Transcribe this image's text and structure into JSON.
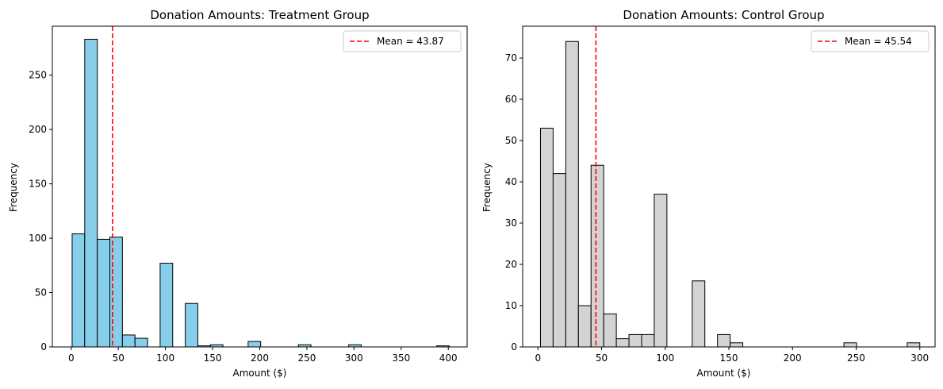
{
  "chart_data": [
    {
      "type": "bar",
      "subtype": "histogram",
      "title": "Donation Amounts: Treatment Group",
      "xlabel": "Amount ($)",
      "ylabel": "Frequency",
      "xlim": [
        -20,
        420
      ],
      "ylim": [
        0,
        295
      ],
      "xticks": [
        0,
        50,
        100,
        150,
        200,
        250,
        300,
        350,
        400
      ],
      "yticks": [
        0,
        50,
        100,
        150,
        200,
        250
      ],
      "bar_color": "#87ceeb",
      "edge_color": "#000000",
      "bin_width": 13.33,
      "bins": [
        {
          "x0": 1.0,
          "count": 104
        },
        {
          "x0": 14.33,
          "count": 283
        },
        {
          "x0": 27.67,
          "count": 99
        },
        {
          "x0": 41.0,
          "count": 101
        },
        {
          "x0": 54.33,
          "count": 11
        },
        {
          "x0": 67.67,
          "count": 8
        },
        {
          "x0": 94.33,
          "count": 77
        },
        {
          "x0": 121.0,
          "count": 40
        },
        {
          "x0": 134.33,
          "count": 1
        },
        {
          "x0": 147.67,
          "count": 2
        },
        {
          "x0": 187.67,
          "count": 5
        },
        {
          "x0": 241.0,
          "count": 2
        },
        {
          "x0": 294.33,
          "count": 2
        },
        {
          "x0": 387.67,
          "count": 1
        }
      ],
      "mean": 43.87,
      "mean_color": "#ff0000",
      "legend": {
        "label": "Mean = 43.87",
        "position": "upper right"
      }
    },
    {
      "type": "bar",
      "subtype": "histogram",
      "title": "Donation Amounts: Control Group",
      "xlabel": "Amount ($)",
      "ylabel": "Frequency",
      "xlim": [
        -12,
        312
      ],
      "ylim": [
        0,
        77.7
      ],
      "xticks": [
        0,
        50,
        100,
        150,
        200,
        250,
        300
      ],
      "yticks": [
        0,
        10,
        20,
        30,
        40,
        50,
        60,
        70
      ],
      "bar_color": "#d3d3d3",
      "edge_color": "#000000",
      "bin_width": 9.93,
      "bins": [
        {
          "x0": 2.0,
          "count": 53
        },
        {
          "x0": 11.93,
          "count": 42
        },
        {
          "x0": 21.87,
          "count": 74
        },
        {
          "x0": 31.8,
          "count": 10
        },
        {
          "x0": 41.73,
          "count": 44
        },
        {
          "x0": 51.67,
          "count": 8
        },
        {
          "x0": 61.6,
          "count": 2
        },
        {
          "x0": 71.53,
          "count": 3
        },
        {
          "x0": 81.47,
          "count": 3
        },
        {
          "x0": 91.4,
          "count": 37
        },
        {
          "x0": 121.2,
          "count": 16
        },
        {
          "x0": 141.07,
          "count": 3
        },
        {
          "x0": 151.0,
          "count": 1
        },
        {
          "x0": 240.4,
          "count": 1
        },
        {
          "x0": 290.07,
          "count": 1
        }
      ],
      "mean": 45.54,
      "mean_color": "#ff0000",
      "legend": {
        "label": "Mean = 45.54",
        "position": "upper right"
      }
    }
  ]
}
